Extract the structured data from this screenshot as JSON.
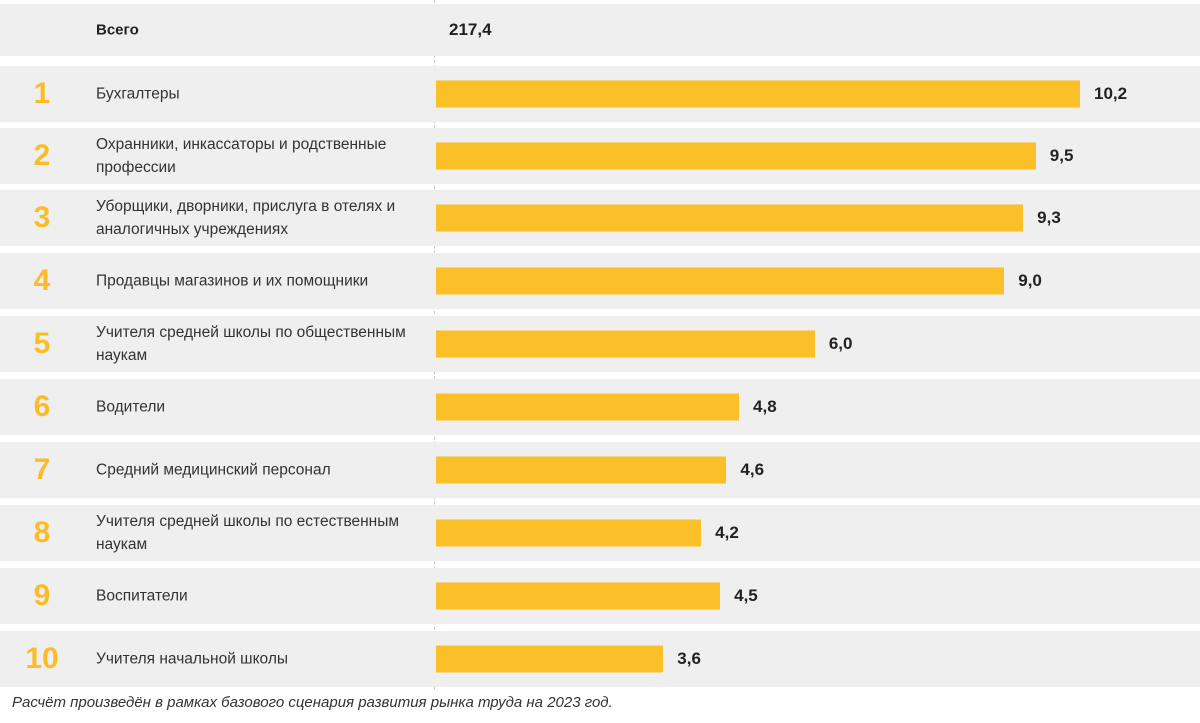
{
  "chart_data": {
    "type": "bar",
    "orientation": "horizontal",
    "total": {
      "label": "Всего",
      "value": "217,4"
    },
    "ranks": [
      "1",
      "2",
      "3",
      "4",
      "5",
      "6",
      "7",
      "8",
      "9",
      "10"
    ],
    "categories": [
      "Бухгалтеры",
      "Охранники, инкассаторы и родственные профессии",
      "Уборщики, дворники, прислуга в отелях и аналогичных учреждениях",
      "Продавцы магазинов и их помощники",
      "Учителя средней школы по общественным наукам",
      "Водители",
      "Средний медицинский персонал",
      "Учителя средней школы по естественным наукам",
      "Воспитатели",
      "Учителя начальной школы"
    ],
    "values": [
      10.2,
      9.5,
      9.3,
      9.0,
      6.0,
      4.8,
      4.6,
      4.2,
      4.5,
      3.6
    ],
    "value_labels": [
      "10,2",
      "9,5",
      "9,3",
      "9,0",
      "6,0",
      "4,8",
      "4,6",
      "4,2",
      "4,5",
      "3,6"
    ],
    "xlim": [
      0,
      10.2
    ],
    "bar_color": "#fbbf28",
    "rank_color": "#fbbc2a"
  },
  "footnote": "Расчёт произведён в рамках базового сценария развития рынка труда на 2023 год."
}
